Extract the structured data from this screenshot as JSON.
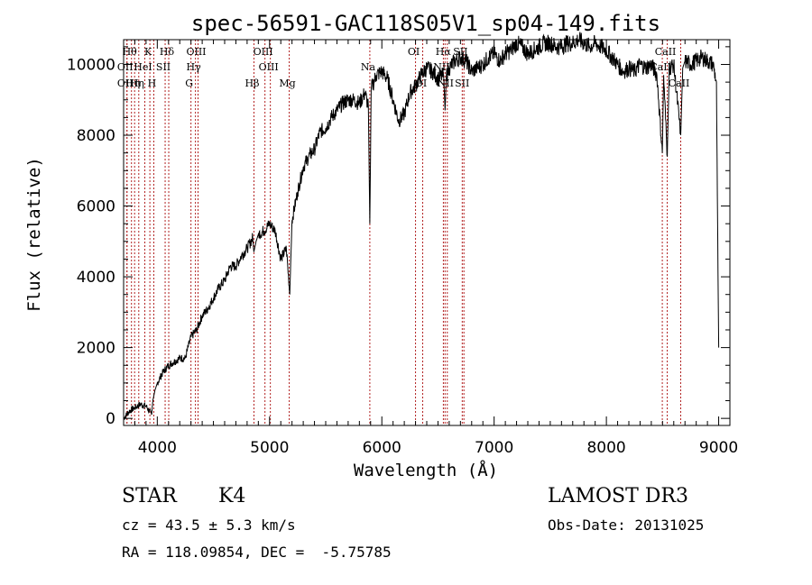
{
  "chart_data": {
    "type": "line",
    "title": "spec-56591-GAC118S05V1_sp04-149.fits",
    "xlabel": "Wavelength (Å)",
    "ylabel": "Flux (relative)",
    "xlim": [
      3700,
      9100
    ],
    "ylim": [
      -200,
      10700
    ],
    "xticks": [
      4000,
      5000,
      6000,
      7000,
      8000,
      9000
    ],
    "yticks": [
      0,
      2000,
      4000,
      6000,
      8000,
      10000
    ],
    "series": [
      {
        "name": "flux",
        "x": [
          3700,
          3750,
          3800,
          3850,
          3900,
          3950,
          3960,
          3980,
          4000,
          4050,
          4100,
          4150,
          4200,
          4250,
          4300,
          4350,
          4400,
          4450,
          4500,
          4550,
          4600,
          4650,
          4700,
          4750,
          4800,
          4850,
          4860,
          4880,
          4900,
          4950,
          5000,
          5050,
          5100,
          5150,
          5180,
          5200,
          5250,
          5300,
          5350,
          5400,
          5450,
          5500,
          5550,
          5600,
          5650,
          5700,
          5750,
          5800,
          5850,
          5880,
          5893,
          5905,
          5950,
          6000,
          6050,
          6100,
          6150,
          6200,
          6250,
          6300,
          6350,
          6400,
          6450,
          6500,
          6550,
          6563,
          6575,
          6600,
          6650,
          6700,
          6750,
          6800,
          6850,
          6900,
          6950,
          7000,
          7050,
          7100,
          7150,
          7200,
          7250,
          7300,
          7350,
          7400,
          7450,
          7500,
          7550,
          7600,
          7650,
          7700,
          7750,
          7800,
          7850,
          7900,
          7950,
          8000,
          8050,
          8100,
          8150,
          8200,
          8250,
          8300,
          8350,
          8400,
          8450,
          8498,
          8510,
          8542,
          8560,
          8600,
          8662,
          8680,
          8700,
          8750,
          8800,
          8850,
          8900,
          8950,
          8980,
          9000
        ],
        "values": [
          0,
          200,
          300,
          400,
          350,
          100,
          500,
          800,
          1000,
          1300,
          1500,
          1600,
          1700,
          1700,
          2300,
          2500,
          2900,
          3100,
          3400,
          3700,
          3900,
          4300,
          4300,
          4600,
          4800,
          5100,
          4700,
          5000,
          5200,
          5300,
          5500,
          5300,
          4500,
          4800,
          3500,
          5600,
          6400,
          7100,
          7400,
          7600,
          8100,
          8200,
          8500,
          8700,
          8900,
          9000,
          9000,
          8900,
          9200,
          8800,
          5500,
          9300,
          9700,
          9800,
          9600,
          9000,
          8400,
          8600,
          9200,
          9400,
          9700,
          9900,
          9800,
          9600,
          9700,
          8700,
          9700,
          9900,
          10100,
          10200,
          10100,
          9800,
          9900,
          10000,
          10200,
          10300,
          10100,
          10300,
          10400,
          10600,
          10500,
          10300,
          10400,
          10500,
          10600,
          10600,
          10500,
          10500,
          10600,
          10600,
          10700,
          10600,
          10500,
          10600,
          10500,
          10400,
          10200,
          10000,
          9800,
          9900,
          9800,
          10000,
          9900,
          10000,
          9700,
          7500,
          9700,
          7400,
          9900,
          10000,
          8000,
          9900,
          10100,
          10000,
          10100,
          10200,
          10100,
          10000,
          9500,
          2000
        ]
      }
    ],
    "lines": [
      {
        "w": 3770,
        "label": "Hθ",
        "row": 0
      },
      {
        "w": 3730,
        "label": "OII",
        "row": 1
      },
      {
        "w": 3730,
        "label": "OII",
        "row": 2
      },
      {
        "w": 3798,
        "label": "Hη",
        "row": 2
      },
      {
        "w": 3835,
        "label": "Hη",
        "row": 2
      },
      {
        "w": 3889,
        "label": "HeI",
        "row": 1
      },
      {
        "w": 3934,
        "label": "K",
        "row": 0
      },
      {
        "w": 3969,
        "label": "H",
        "row": 2
      },
      {
        "w": 4070,
        "label": "SII",
        "row": 1
      },
      {
        "w": 4102,
        "label": "Hδ",
        "row": 0
      },
      {
        "w": 4300,
        "label": "G",
        "row": 2
      },
      {
        "w": 4340,
        "label": "Hγ",
        "row": 1
      },
      {
        "w": 4363,
        "label": "OIII",
        "row": 0
      },
      {
        "w": 4861,
        "label": "Hβ",
        "row": 2
      },
      {
        "w": 4959,
        "label": "OIII",
        "row": 0
      },
      {
        "w": 5007,
        "label": "OIII",
        "row": 1
      },
      {
        "w": 5175,
        "label": "Mg",
        "row": 2
      },
      {
        "w": 5893,
        "label": "Na",
        "row": 1
      },
      {
        "w": 6300,
        "label": "OI",
        "row": 0
      },
      {
        "w": 6364,
        "label": "OI",
        "row": 2
      },
      {
        "w": 6548,
        "label": "NII",
        "row": 1
      },
      {
        "w": 6563,
        "label": "Hα",
        "row": 0
      },
      {
        "w": 6583,
        "label": "NII",
        "row": 2
      },
      {
        "w": 6716,
        "label": "SII",
        "row": 0
      },
      {
        "w": 6731,
        "label": "SII",
        "row": 2
      },
      {
        "w": 8498,
        "label": "CaII",
        "row": 1
      },
      {
        "w": 8542,
        "label": "CaII",
        "row": 0
      },
      {
        "w": 8662,
        "label": "CaII",
        "row": 2
      }
    ]
  },
  "info": {
    "object_class": "STAR",
    "subclass": "K4",
    "survey": "LAMOST DR3",
    "redshift": "cz = 43.5 ± 5.3 km/s",
    "obs_date": "Obs-Date: 20131025",
    "coords": "RA = 118.09854, DEC =  -5.75785"
  }
}
